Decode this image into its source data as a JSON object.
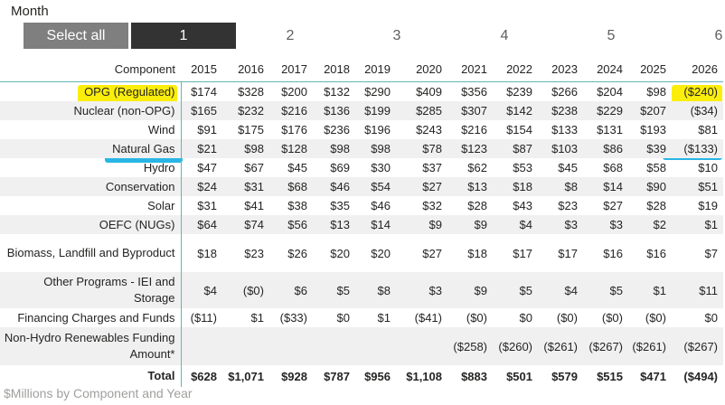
{
  "month_label": "Month",
  "slicer": {
    "select_all_label": "Select all",
    "selected_label": "1",
    "options": [
      "2",
      "3",
      "4",
      "5",
      "6"
    ]
  },
  "table": {
    "headers": [
      "Component",
      "2015",
      "2016",
      "2017",
      "2018",
      "2019",
      "2020",
      "2021",
      "2022",
      "2023",
      "2024",
      "2025",
      "2026"
    ],
    "rows": [
      {
        "label": "OPG (Regulated)",
        "values": [
          "$174",
          "$328",
          "$200",
          "$132",
          "$290",
          "$409",
          "$356",
          "$239",
          "$266",
          "$204",
          "$98",
          "($240)"
        ]
      },
      {
        "label": "Nuclear (non-OPG)",
        "values": [
          "$165",
          "$232",
          "$216",
          "$136",
          "$199",
          "$285",
          "$307",
          "$142",
          "$238",
          "$229",
          "$207",
          "($34)"
        ]
      },
      {
        "label": "Wind",
        "values": [
          "$91",
          "$175",
          "$176",
          "$236",
          "$196",
          "$243",
          "$216",
          "$154",
          "$133",
          "$131",
          "$193",
          "$81"
        ]
      },
      {
        "label": "Natural Gas",
        "values": [
          "$21",
          "$98",
          "$128",
          "$98",
          "$98",
          "$78",
          "$123",
          "$87",
          "$103",
          "$86",
          "$39",
          "($133)"
        ]
      },
      {
        "label": "Hydro",
        "values": [
          "$47",
          "$67",
          "$45",
          "$69",
          "$30",
          "$37",
          "$62",
          "$53",
          "$45",
          "$68",
          "$58",
          "$10"
        ]
      },
      {
        "label": "Conservation",
        "values": [
          "$24",
          "$31",
          "$68",
          "$46",
          "$54",
          "$27",
          "$13",
          "$18",
          "$8",
          "$14",
          "$90",
          "$51"
        ]
      },
      {
        "label": "Solar",
        "values": [
          "$31",
          "$41",
          "$38",
          "$35",
          "$46",
          "$32",
          "$28",
          "$43",
          "$23",
          "$27",
          "$28",
          "$19"
        ]
      },
      {
        "label": "OEFC (NUGs)",
        "values": [
          "$64",
          "$74",
          "$56",
          "$13",
          "$14",
          "$9",
          "$9",
          "$4",
          "$3",
          "$3",
          "$2",
          "$1"
        ]
      },
      {
        "label": "Biomass, Landfill and Byproduct",
        "values": [
          "$18",
          "$23",
          "$26",
          "$20",
          "$20",
          "$27",
          "$18",
          "$17",
          "$17",
          "$16",
          "$16",
          "$7"
        ]
      },
      {
        "label": "Other Programs - IEI and Storage",
        "values": [
          "$4",
          "($0)",
          "$6",
          "$5",
          "$8",
          "$3",
          "$9",
          "$5",
          "$4",
          "$5",
          "$1",
          "$11"
        ]
      },
      {
        "label": "Financing Charges and Funds",
        "values": [
          "($11)",
          "$1",
          "($33)",
          "$0",
          "$1",
          "($41)",
          "($0)",
          "$0",
          "($0)",
          "($0)",
          "($0)",
          "$0"
        ]
      },
      {
        "label": "Non-Hydro Renewables Funding Amount*",
        "values": [
          "",
          "",
          "",
          "",
          "",
          "",
          "($258)",
          "($260)",
          "($261)",
          "($267)",
          "($261)",
          "($267)"
        ]
      }
    ],
    "total": {
      "label": "Total",
      "values": [
        "$628",
        "$1,071",
        "$928",
        "$787",
        "$956",
        "$1,108",
        "$883",
        "$501",
        "$579",
        "$515",
        "$471",
        "($494)"
      ]
    }
  },
  "footer": "$Millions by Component and Year",
  "colors": {
    "highlight_yellow": "#fbee0c",
    "highlight_blue": "#28b6e4",
    "row_shade": "#f0f0f0",
    "divider": "#5fb6b8"
  }
}
